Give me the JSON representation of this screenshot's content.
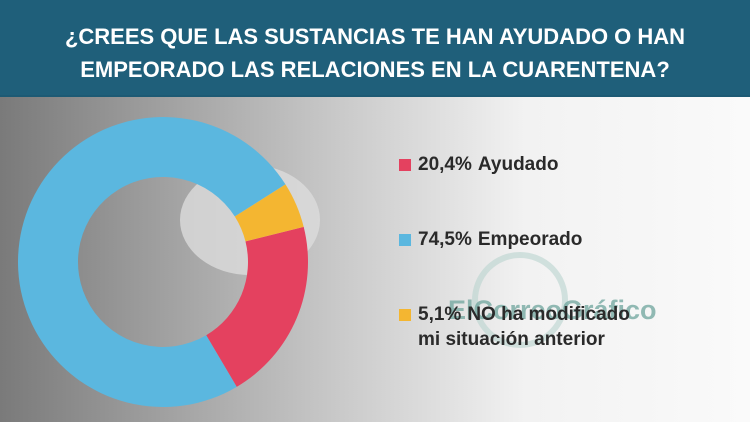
{
  "chart_data": {
    "type": "donut",
    "title": [
      "¿CREES QUE LAS SUSTANCIAS TE HAN AYUDADO O HAN",
      "EMPEORADO LAS RELACIONES EN LA CUARENTENA?"
    ],
    "categories": [
      "Ayudado",
      "Empeorado",
      [
        "NO ha modificado",
        "mi situación anterior"
      ]
    ],
    "values": [
      20.4,
      74.5,
      5.1
    ],
    "value_labels": [
      "20,4%",
      "74,5%",
      "5,1%"
    ],
    "colors": [
      "#e4415f",
      "#5bb7df",
      "#f4b631"
    ],
    "watermark": "ElCorreoGráfico"
  }
}
